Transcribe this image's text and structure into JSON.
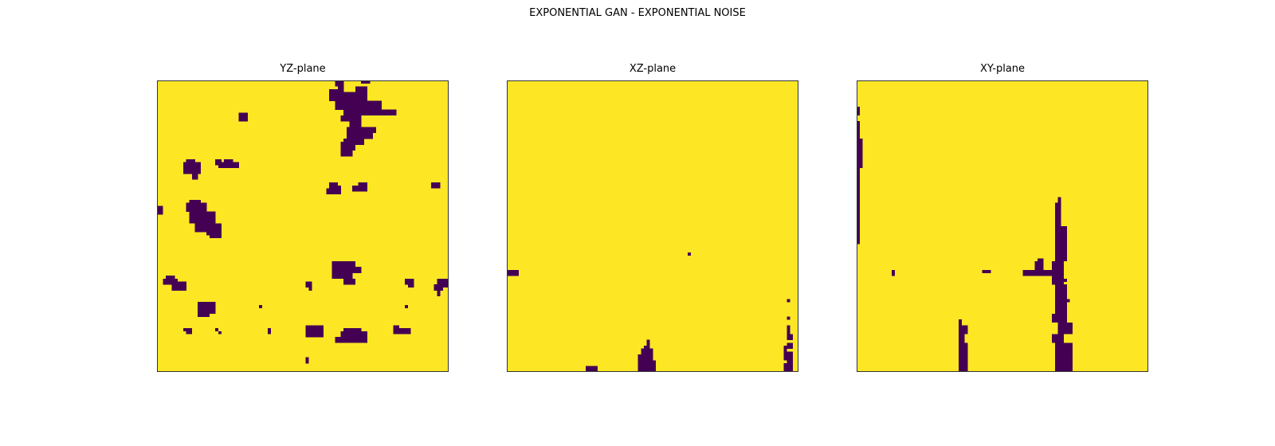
{
  "figure": {
    "title": "EXPONENTIAL GAN - EXPONENTIAL NOISE"
  },
  "colors": {
    "background": "#fde725",
    "foreground": "#440154",
    "frame": "#333333"
  },
  "grid_size": 100,
  "panels": [
    {
      "id": "yz",
      "title": "YZ-plane",
      "pores": [
        [
          61,
          0,
          3,
          2
        ],
        [
          70,
          0,
          3,
          1
        ],
        [
          62,
          2,
          2,
          2
        ],
        [
          59,
          3,
          4,
          1
        ],
        [
          68,
          2,
          4,
          3
        ],
        [
          59,
          4,
          13,
          3
        ],
        [
          61,
          7,
          16,
          3
        ],
        [
          64,
          10,
          18,
          2
        ],
        [
          63,
          12,
          4,
          2
        ],
        [
          66,
          12,
          4,
          4
        ],
        [
          65,
          16,
          10,
          2
        ],
        [
          65,
          18,
          9,
          2
        ],
        [
          64,
          20,
          7,
          2
        ],
        [
          63,
          21,
          5,
          3
        ],
        [
          63,
          24,
          4,
          2
        ],
        [
          28,
          11,
          3,
          3
        ],
        [
          10,
          27,
          3,
          2
        ],
        [
          9,
          28,
          6,
          4
        ],
        [
          12,
          32,
          2,
          2
        ],
        [
          20,
          27,
          2,
          2
        ],
        [
          23,
          27,
          3,
          3
        ],
        [
          21,
          28,
          7,
          2
        ],
        [
          24,
          29,
          3,
          1
        ],
        [
          59,
          35,
          3,
          2
        ],
        [
          60,
          36,
          3,
          3
        ],
        [
          58,
          37,
          3,
          2
        ],
        [
          69,
          35,
          3,
          2
        ],
        [
          67,
          36,
          5,
          2
        ],
        [
          69,
          37,
          3,
          1
        ],
        [
          94,
          35,
          3,
          2
        ],
        [
          0,
          43,
          2,
          1
        ],
        [
          0,
          44,
          2,
          2
        ],
        [
          11,
          41,
          4,
          2
        ],
        [
          10,
          42,
          7,
          3
        ],
        [
          11,
          45,
          9,
          4
        ],
        [
          13,
          49,
          9,
          3
        ],
        [
          17,
          52,
          5,
          1
        ],
        [
          18,
          53,
          4,
          1
        ],
        [
          60,
          62,
          8,
          2
        ],
        [
          60,
          64,
          10,
          2
        ],
        [
          60,
          66,
          7,
          2
        ],
        [
          64,
          68,
          4,
          2
        ],
        [
          65,
          68,
          3,
          2
        ],
        [
          3,
          67,
          3,
          2
        ],
        [
          2,
          68,
          5,
          2
        ],
        [
          5,
          70,
          2,
          2
        ],
        [
          7,
          69,
          3,
          3
        ],
        [
          51,
          69,
          2,
          2
        ],
        [
          52,
          71,
          1,
          1
        ],
        [
          85,
          68,
          3,
          2
        ],
        [
          86,
          70,
          2,
          1
        ],
        [
          96,
          68,
          4,
          3
        ],
        [
          95,
          70,
          3,
          2
        ],
        [
          96,
          72,
          1,
          2
        ],
        [
          14,
          76,
          6,
          3
        ],
        [
          14,
          79,
          4,
          2
        ],
        [
          16,
          79,
          4,
          1
        ],
        [
          35,
          77,
          1,
          1
        ],
        [
          85,
          77,
          1,
          1
        ],
        [
          9,
          85,
          3,
          1
        ],
        [
          10,
          86,
          2,
          1
        ],
        [
          20,
          85,
          1,
          1
        ],
        [
          21,
          86,
          1,
          1
        ],
        [
          38,
          85,
          1,
          2
        ],
        [
          51,
          84,
          6,
          4
        ],
        [
          51,
          86,
          3,
          1
        ],
        [
          64,
          85,
          6,
          2
        ],
        [
          63,
          86,
          9,
          3
        ],
        [
          61,
          88,
          11,
          2
        ],
        [
          81,
          84,
          2,
          1
        ],
        [
          81,
          85,
          6,
          2
        ],
        [
          51,
          95,
          1,
          2
        ]
      ]
    },
    {
      "id": "xz",
      "title": "XZ-plane",
      "pores": [
        [
          62,
          59,
          1,
          1
        ],
        [
          0,
          65,
          4,
          2
        ],
        [
          47,
          91,
          2,
          1
        ],
        [
          46,
          92,
          4,
          2
        ],
        [
          45,
          94,
          5,
          2
        ],
        [
          45,
          96,
          6,
          4
        ],
        [
          48,
          89,
          1,
          2
        ],
        [
          27,
          98,
          4,
          2
        ],
        [
          96,
          75,
          1,
          1
        ],
        [
          96,
          81,
          1,
          1
        ],
        [
          96,
          84,
          1,
          3
        ],
        [
          96,
          87,
          2,
          2
        ],
        [
          95,
          91,
          1,
          2
        ],
        [
          96,
          90,
          2,
          2
        ],
        [
          95,
          93,
          3,
          3
        ],
        [
          96,
          96,
          2,
          4
        ],
        [
          95,
          97,
          1,
          3
        ]
      ]
    },
    {
      "id": "xy",
      "title": "XY-plane",
      "pores": [
        [
          0,
          9,
          1,
          3
        ],
        [
          0,
          14,
          1,
          2
        ],
        [
          0,
          16,
          1,
          40
        ],
        [
          1,
          20,
          1,
          10
        ],
        [
          1,
          23,
          1,
          2
        ],
        [
          12,
          65,
          1,
          2
        ],
        [
          43,
          65,
          3,
          1
        ],
        [
          57,
          65,
          11,
          2
        ],
        [
          61,
          62,
          3,
          3
        ],
        [
          62,
          61,
          2,
          1
        ],
        [
          68,
          42,
          2,
          2
        ],
        [
          69,
          40,
          1,
          2
        ],
        [
          68,
          44,
          2,
          6
        ],
        [
          68,
          50,
          4,
          12
        ],
        [
          67,
          62,
          4,
          8
        ],
        [
          68,
          70,
          4,
          10
        ],
        [
          67,
          80,
          5,
          3
        ],
        [
          69,
          83,
          5,
          4
        ],
        [
          67,
          87,
          4,
          3
        ],
        [
          68,
          90,
          6,
          10
        ],
        [
          71,
          68,
          1,
          1
        ],
        [
          72,
          75,
          1,
          1
        ],
        [
          72,
          83,
          1,
          1
        ],
        [
          72,
          86,
          1,
          1
        ],
        [
          35,
          82,
          1,
          2
        ],
        [
          35,
          84,
          3,
          3
        ],
        [
          35,
          87,
          2,
          3
        ],
        [
          35,
          90,
          3,
          6
        ],
        [
          35,
          96,
          3,
          4
        ],
        [
          70,
          80,
          2,
          6
        ],
        [
          73,
          91,
          1,
          3
        ]
      ]
    }
  ]
}
